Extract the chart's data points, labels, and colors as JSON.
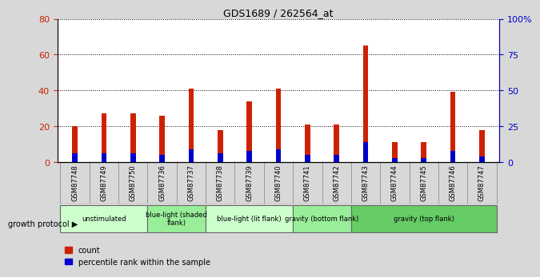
{
  "title": "GDS1689 / 262564_at",
  "samples": [
    "GSM87748",
    "GSM87749",
    "GSM87750",
    "GSM87736",
    "GSM87737",
    "GSM87738",
    "GSM87739",
    "GSM87740",
    "GSM87741",
    "GSM87742",
    "GSM87743",
    "GSM87744",
    "GSM87745",
    "GSM87746",
    "GSM87747"
  ],
  "count_values": [
    20,
    27,
    27,
    26,
    41,
    18,
    34,
    41,
    21,
    21,
    65,
    11,
    11,
    39,
    18
  ],
  "percentile_values": [
    6,
    6,
    6,
    5,
    9,
    6,
    8,
    9,
    5,
    5,
    14,
    3,
    3,
    8,
    4
  ],
  "groups": [
    {
      "label": "unstimulated",
      "start": 0,
      "end": 3,
      "color": "#ccffcc"
    },
    {
      "label": "blue-light (shaded\nflank)",
      "start": 3,
      "end": 5,
      "color": "#99ee99"
    },
    {
      "label": "blue-light (lit flank)",
      "start": 5,
      "end": 8,
      "color": "#ccffcc"
    },
    {
      "label": "gravity (bottom flank)",
      "start": 8,
      "end": 10,
      "color": "#99ee99"
    },
    {
      "label": "gravity (top flank)",
      "start": 10,
      "end": 15,
      "color": "#66cc66"
    }
  ],
  "ylim_left": [
    0,
    80
  ],
  "ylim_right": [
    0,
    100
  ],
  "yticks_left": [
    0,
    20,
    40,
    60,
    80
  ],
  "yticks_right": [
    0,
    25,
    50,
    75,
    100
  ],
  "ytick_labels_right": [
    "0",
    "25",
    "50",
    "75",
    "100%"
  ],
  "bar_color_count": "#cc2200",
  "bar_color_pct": "#0000cc",
  "bg_color": "#d8d8d8",
  "plot_bg": "#ffffff",
  "xtick_bg": "#c8c8c8",
  "legend_count": "count",
  "legend_pct": "percentile rank within the sample",
  "growth_protocol_label": "growth protocol"
}
